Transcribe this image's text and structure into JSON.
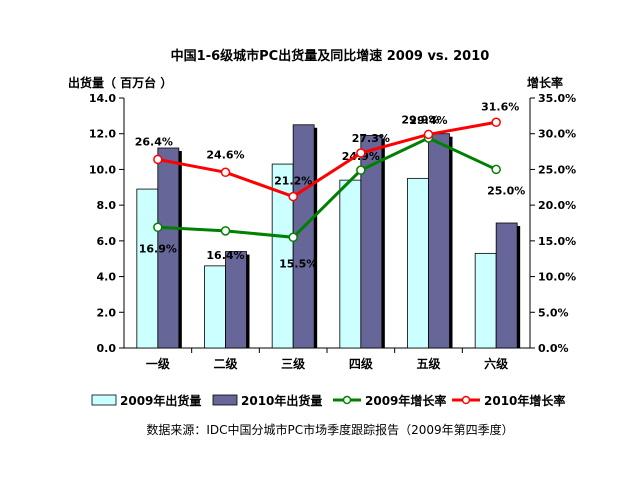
{
  "chart_data": {
    "type": "bar",
    "title": "中国1-6级城市PC出货量及同比增速 2009 vs. 2010",
    "ylabel_left": "出货量（ 百万台 ）",
    "ylabel_right": "增长率",
    "categories": [
      "一级",
      "二级",
      "三级",
      "四级",
      "五级",
      "六级"
    ],
    "ylim_left": [
      0,
      14
    ],
    "ylim_right": [
      0,
      35
    ],
    "yticks_left": [
      "0.0",
      "2.0",
      "4.0",
      "6.0",
      "8.0",
      "10.0",
      "12.0",
      "14.0"
    ],
    "yticks_right": [
      "0.0%",
      "5.0%",
      "10.0%",
      "15.0%",
      "20.0%",
      "25.0%",
      "30.0%",
      "35.0%"
    ],
    "bar_series": [
      {
        "name": "2009年出货量",
        "color": "#ccffff",
        "values": [
          8.9,
          4.6,
          10.3,
          9.4,
          9.5,
          5.3
        ]
      },
      {
        "name": "2010年出货量",
        "color": "#666699",
        "values": [
          11.2,
          5.4,
          12.5,
          11.9,
          12.0,
          7.0
        ]
      }
    ],
    "line_series": [
      {
        "name": "2009年增长率",
        "color": "#008000",
        "values": [
          16.9,
          16.4,
          15.5,
          24.9,
          29.4,
          25.0
        ],
        "labels": [
          "16.9%",
          "16.4%",
          "15.5%",
          "24.9%",
          "29.4%",
          "25.0%"
        ]
      },
      {
        "name": "2010年增长率",
        "color": "#ff0000",
        "values": [
          26.4,
          24.6,
          21.2,
          27.3,
          29.9,
          31.6
        ],
        "labels": [
          "26.4%",
          "24.6%",
          "21.2%",
          "27.3%",
          "29.9%",
          "31.6%"
        ]
      }
    ],
    "grid": false,
    "legend": "bottom",
    "source": "数据来源：IDC中国分城市PC市场季度跟踪报告（2009年第四季度）"
  }
}
